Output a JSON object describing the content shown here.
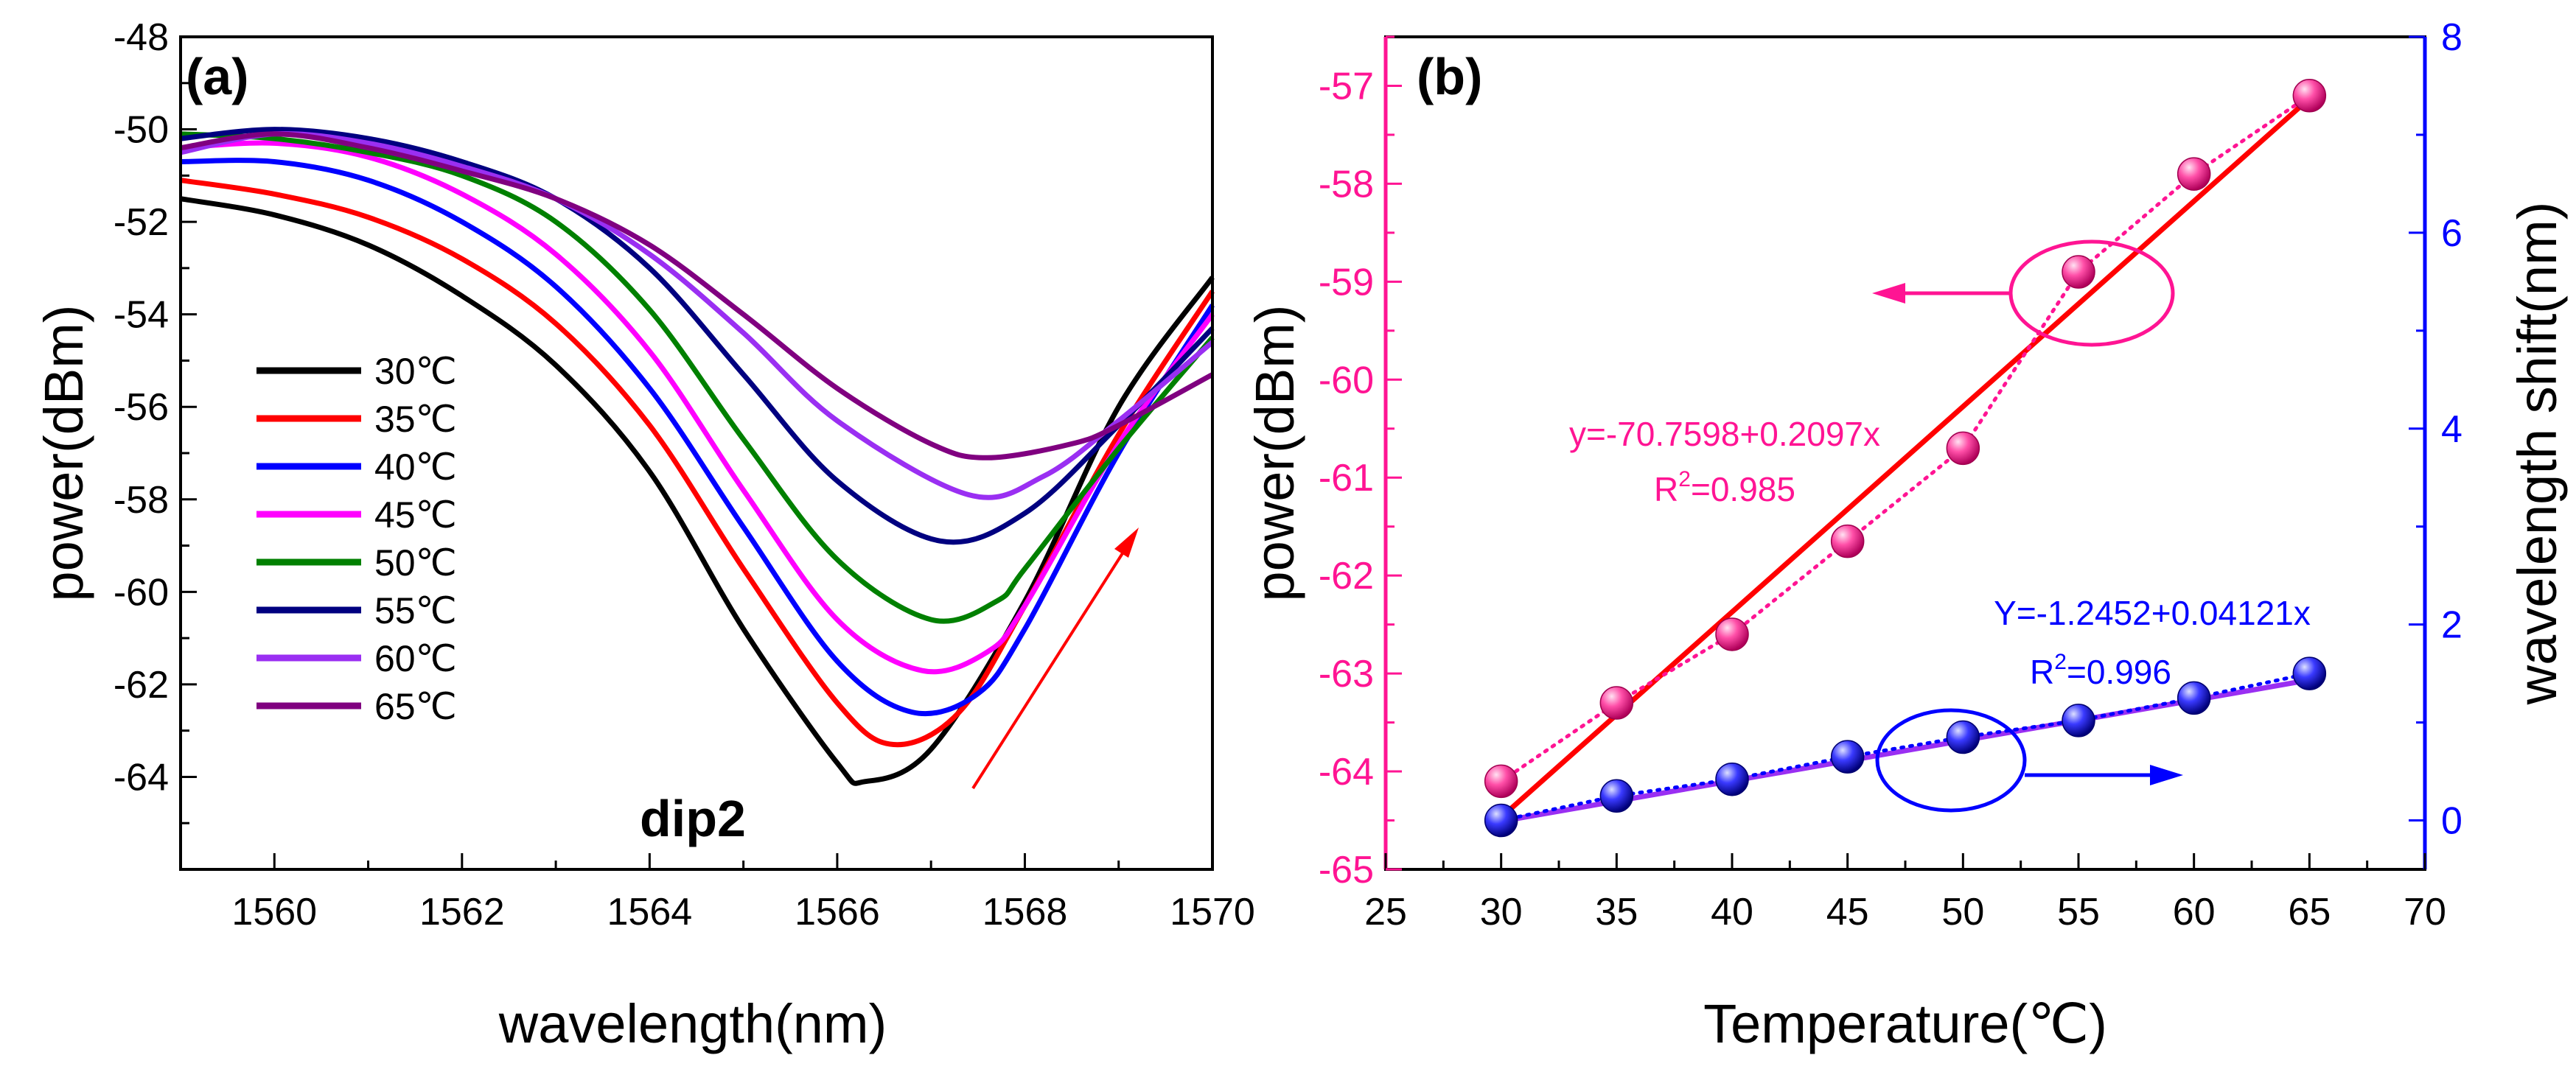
{
  "colors": {
    "pink": "#ff1493",
    "blue": "#0000ff",
    "red": "#ff0000",
    "purple": "#9a2ff2",
    "axis": "#000000"
  },
  "chart_data": [
    {
      "type": "line",
      "panel_label": "(a)",
      "title": "",
      "xlabel": "wavelength(nm)",
      "ylabel": "power(dBm)",
      "xlim": [
        1559,
        1570
      ],
      "ylim": [
        -66,
        -48
      ],
      "x_ticks": [
        "1560",
        "1562",
        "1564",
        "1566",
        "1568",
        "1570"
      ],
      "y_ticks": [
        "-48",
        "-50",
        "-52",
        "-54",
        "-56",
        "-58",
        "-60",
        "-62",
        "-64"
      ],
      "annotation": "dip2",
      "legend_position": "lower-left",
      "series": [
        {
          "name": "30℃",
          "color": "#000000",
          "points": [
            [
              1559,
              -51.5
            ],
            [
              1560,
              -51.85
            ],
            [
              1561,
              -52.5
            ],
            [
              1562,
              -53.6
            ],
            [
              1563,
              -55.1
            ],
            [
              1564,
              -57.4
            ],
            [
              1565,
              -60.8
            ],
            [
              1566,
              -63.7
            ],
            [
              1566.3,
              -64.1
            ],
            [
              1567,
              -63.4
            ],
            [
              1568,
              -60.2
            ],
            [
              1569,
              -56.0
            ],
            [
              1570,
              -53.2
            ]
          ]
        },
        {
          "name": "35℃",
          "color": "#ff0000",
          "points": [
            [
              1559,
              -51.1
            ],
            [
              1560,
              -51.4
            ],
            [
              1561,
              -51.9
            ],
            [
              1562,
              -52.8
            ],
            [
              1563,
              -54.2
            ],
            [
              1564,
              -56.4
            ],
            [
              1565,
              -59.5
            ],
            [
              1566,
              -62.4
            ],
            [
              1566.6,
              -63.3
            ],
            [
              1567.3,
              -62.6
            ],
            [
              1568,
              -60.3
            ],
            [
              1569,
              -56.6
            ],
            [
              1570,
              -53.5
            ]
          ]
        },
        {
          "name": "40℃",
          "color": "#0000ff",
          "points": [
            [
              1559,
              -50.7
            ],
            [
              1560,
              -50.7
            ],
            [
              1561,
              -51.1
            ],
            [
              1562,
              -52.0
            ],
            [
              1563,
              -53.4
            ],
            [
              1564,
              -55.6
            ],
            [
              1565,
              -58.6
            ],
            [
              1566,
              -61.5
            ],
            [
              1566.8,
              -62.6
            ],
            [
              1567.5,
              -62.2
            ],
            [
              1568,
              -60.8
            ],
            [
              1569,
              -57.0
            ],
            [
              1570,
              -53.8
            ]
          ]
        },
        {
          "name": "45℃",
          "color": "#ff00ff",
          "points": [
            [
              1559,
              -50.4
            ],
            [
              1560,
              -50.3
            ],
            [
              1561,
              -50.6
            ],
            [
              1562,
              -51.4
            ],
            [
              1563,
              -52.7
            ],
            [
              1564,
              -54.8
            ],
            [
              1565,
              -57.8
            ],
            [
              1566,
              -60.6
            ],
            [
              1566.9,
              -61.7
            ],
            [
              1567.6,
              -61.3
            ],
            [
              1568,
              -60.3
            ],
            [
              1569,
              -56.8
            ],
            [
              1570,
              -54.0
            ]
          ]
        },
        {
          "name": "50℃",
          "color": "#008000",
          "points": [
            [
              1559,
              -50.1
            ],
            [
              1560,
              -50.2
            ],
            [
              1561,
              -50.5
            ],
            [
              1562,
              -51.0
            ],
            [
              1563,
              -52.0
            ],
            [
              1564,
              -53.9
            ],
            [
              1565,
              -56.7
            ],
            [
              1566,
              -59.3
            ],
            [
              1567,
              -60.6
            ],
            [
              1567.7,
              -60.2
            ],
            [
              1568,
              -59.5
            ],
            [
              1569,
              -56.9
            ],
            [
              1570,
              -54.5
            ]
          ]
        },
        {
          "name": "55℃",
          "color": "#000080",
          "points": [
            [
              1559,
              -50.2
            ],
            [
              1560,
              -50.0
            ],
            [
              1561,
              -50.2
            ],
            [
              1562,
              -50.7
            ],
            [
              1563,
              -51.5
            ],
            [
              1564,
              -53.0
            ],
            [
              1565,
              -55.3
            ],
            [
              1566,
              -57.6
            ],
            [
              1567.1,
              -58.9
            ],
            [
              1568,
              -58.3
            ],
            [
              1569,
              -56.4
            ],
            [
              1570,
              -54.3
            ]
          ]
        },
        {
          "name": "60℃",
          "color": "#9a2ff2",
          "points": [
            [
              1559,
              -50.5
            ],
            [
              1560,
              -50.1
            ],
            [
              1561,
              -50.3
            ],
            [
              1562,
              -50.8
            ],
            [
              1563,
              -51.5
            ],
            [
              1564,
              -52.7
            ],
            [
              1565,
              -54.4
            ],
            [
              1566,
              -56.3
            ],
            [
              1567.4,
              -57.9
            ],
            [
              1568.2,
              -57.5
            ],
            [
              1569,
              -56.3
            ],
            [
              1570,
              -54.6
            ]
          ]
        },
        {
          "name": "65℃",
          "color": "#800080",
          "points": [
            [
              1559,
              -50.4
            ],
            [
              1560,
              -50.1
            ],
            [
              1561,
              -50.4
            ],
            [
              1562,
              -50.9
            ],
            [
              1563,
              -51.5
            ],
            [
              1564,
              -52.5
            ],
            [
              1565,
              -54.0
            ],
            [
              1566,
              -55.6
            ],
            [
              1567,
              -56.8
            ],
            [
              1567.6,
              -57.1
            ],
            [
              1568.5,
              -56.8
            ],
            [
              1569,
              -56.4
            ],
            [
              1570,
              -55.3
            ]
          ]
        }
      ]
    },
    {
      "type": "scatter",
      "panel_label": "(b)",
      "title": "",
      "xlabel": "Temperature(℃)",
      "ylabel_left": "power(dBm)",
      "ylabel_right": "wavelength shift(nm)",
      "xlim": [
        25,
        70
      ],
      "ylim_left": [
        -65,
        -56.5
      ],
      "ylim_right": [
        -0.5,
        8
      ],
      "x_ticks": [
        "25",
        "30",
        "35",
        "40",
        "45",
        "50",
        "55",
        "60",
        "65",
        "70"
      ],
      "y_ticks_left": [
        "-57",
        "-58",
        "-59",
        "-60",
        "-61",
        "-62",
        "-63",
        "-64",
        "-65"
      ],
      "y_ticks_right": [
        "0",
        "2",
        "4",
        "6",
        "8"
      ],
      "series": [
        {
          "name": "power",
          "axis": "left",
          "color": "#ff1493",
          "x": [
            30,
            35,
            40,
            45,
            50,
            55,
            60,
            65
          ],
          "y": [
            -64.1,
            -63.3,
            -62.6,
            -61.65,
            -60.7,
            -58.9,
            -57.9,
            -57.1
          ]
        },
        {
          "name": "wavelength shift",
          "axis": "right",
          "color": "#0000ff",
          "x": [
            30,
            35,
            40,
            45,
            50,
            55,
            60,
            65
          ],
          "y": [
            0.0,
            0.25,
            0.42,
            0.65,
            0.85,
            1.02,
            1.25,
            1.5
          ]
        }
      ],
      "fits": [
        {
          "label": "y=-70.7598+0.2097x",
          "r2_label": "R",
          "r2_sup": "2",
          "r2_value": "=0.985",
          "axis": "left",
          "intercept": -70.7598,
          "slope": 0.2097,
          "color": "#ff0000",
          "text_color": "#ff1493"
        },
        {
          "label": "Y=-1.2452+0.04121x",
          "r2_label": "R",
          "r2_sup": "2",
          "r2_value": "=0.996",
          "axis": "right",
          "intercept": -1.2452,
          "slope": 0.04121,
          "color": "#9a2ff2",
          "text_color": "#0000ff"
        }
      ]
    }
  ]
}
